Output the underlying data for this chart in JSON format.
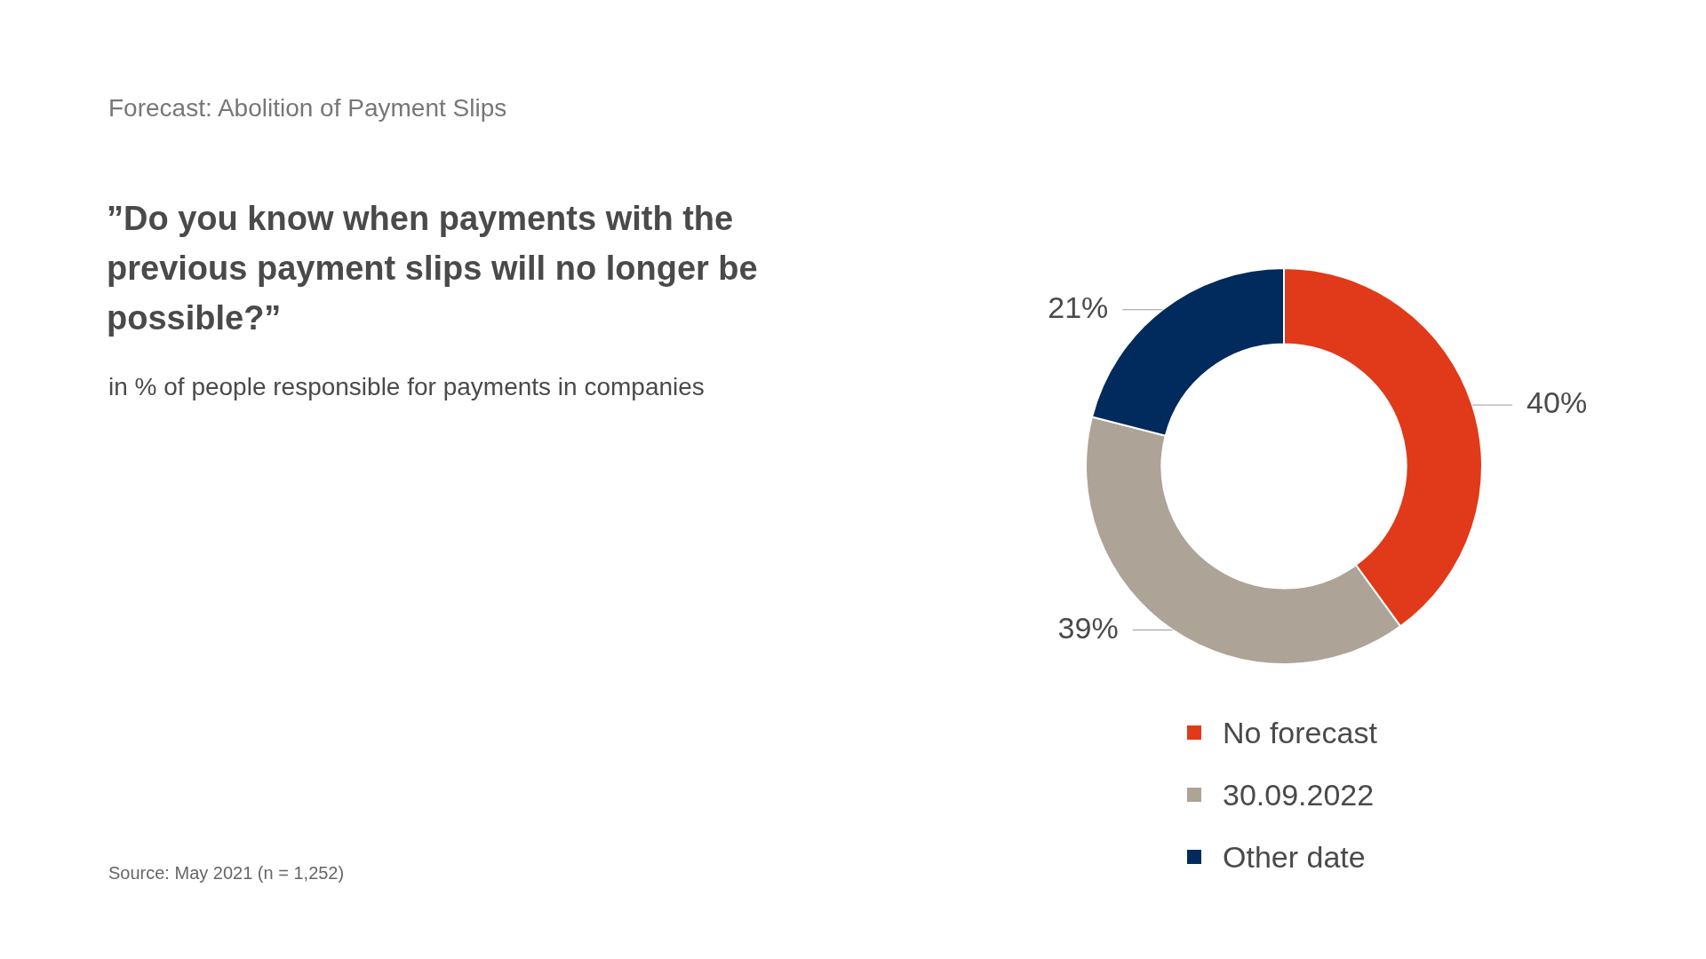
{
  "chart_data": {
    "type": "donut",
    "title": "Forecast: Abolition of Payment Slips",
    "subtitle": "”Do you know when payments with the previous payment slips will no longer be possible?”",
    "categories": [
      "No forecast",
      "30.09.2022",
      "Other date"
    ],
    "values": [
      40,
      39,
      21
    ],
    "colors": [
      "#e03a1a",
      "#ada397",
      "#002b5c"
    ],
    "value_labels": [
      "40%",
      "39%",
      "21%"
    ],
    "legend": "bottom",
    "annotations": [
      "in % of people responsible for payments in companies",
      "Source: May 2021 (n = 1,252)"
    ]
  }
}
